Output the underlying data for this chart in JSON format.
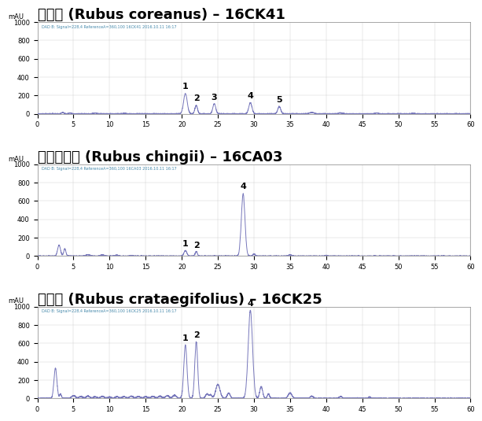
{
  "panel1_title": "복분자 (Rubus coreanus) – 16CK41",
  "panel2_title": "화동복분자 (Rubus chingii) – 16CA03",
  "panel3_title": "산딸기 (Rubus crataegifolius) – 16CK25",
  "subtitle_fontsize": 9,
  "title_fontsize": 13,
  "line_color": "#7777bb",
  "background_color": "#ffffff",
  "panel_bg": "#ffffff",
  "x_min": 0,
  "x_max": 60,
  "ylim1": [
    0,
    1000
  ],
  "ylim2": [
    0,
    1000
  ],
  "ylim3": [
    0,
    1000
  ],
  "yticks1": [
    0,
    200,
    400,
    600,
    800,
    1000
  ],
  "yticks2": [
    0,
    200,
    400,
    600,
    800,
    1000
  ],
  "yticks3": [
    0,
    200,
    400,
    600,
    800,
    1000
  ],
  "small_text": "mAU",
  "peak_color": "#5555aa",
  "noise_color": "#8888cc"
}
